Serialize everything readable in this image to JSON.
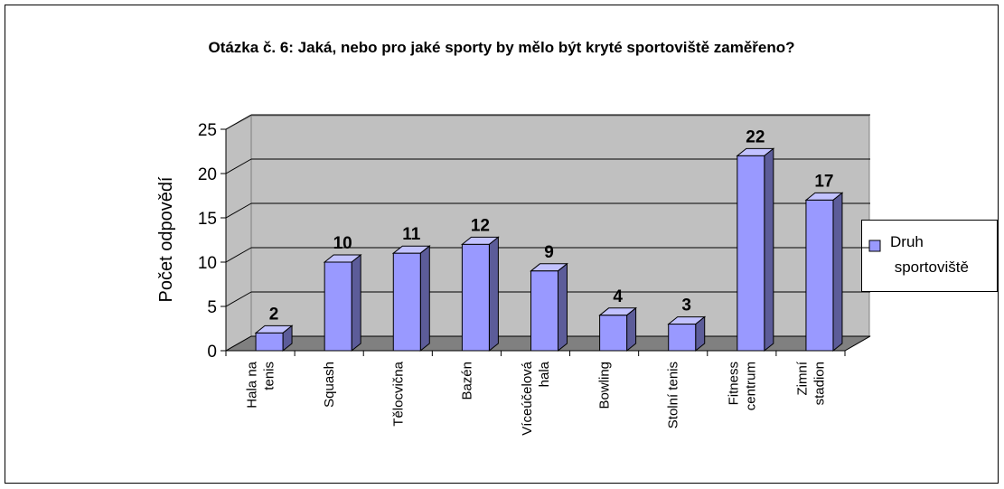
{
  "chart_data": {
    "type": "bar",
    "title": "Otázka č. 6: Jaká, nebo pro jaké sporty by mělo být kryté sportoviště zaměřeno?",
    "y_label": "Počet odpovědí",
    "categories": [
      "Hala na tenis",
      "Squash",
      "Tělocvična",
      "Bazén",
      "Víceúčelová hala",
      "Bowling",
      "Stolní tenis",
      "Fitness centrum",
      "Zimní stadion"
    ],
    "series": [
      {
        "name": "Druh sportoviště",
        "color": "#9999ff",
        "values": [
          2,
          10,
          11,
          12,
          9,
          4,
          3,
          22,
          17
        ]
      }
    ],
    "ylim": [
      0,
      25
    ],
    "yticks": [
      0,
      5,
      10,
      15,
      20,
      25
    ],
    "grid": true,
    "legend": "right"
  }
}
